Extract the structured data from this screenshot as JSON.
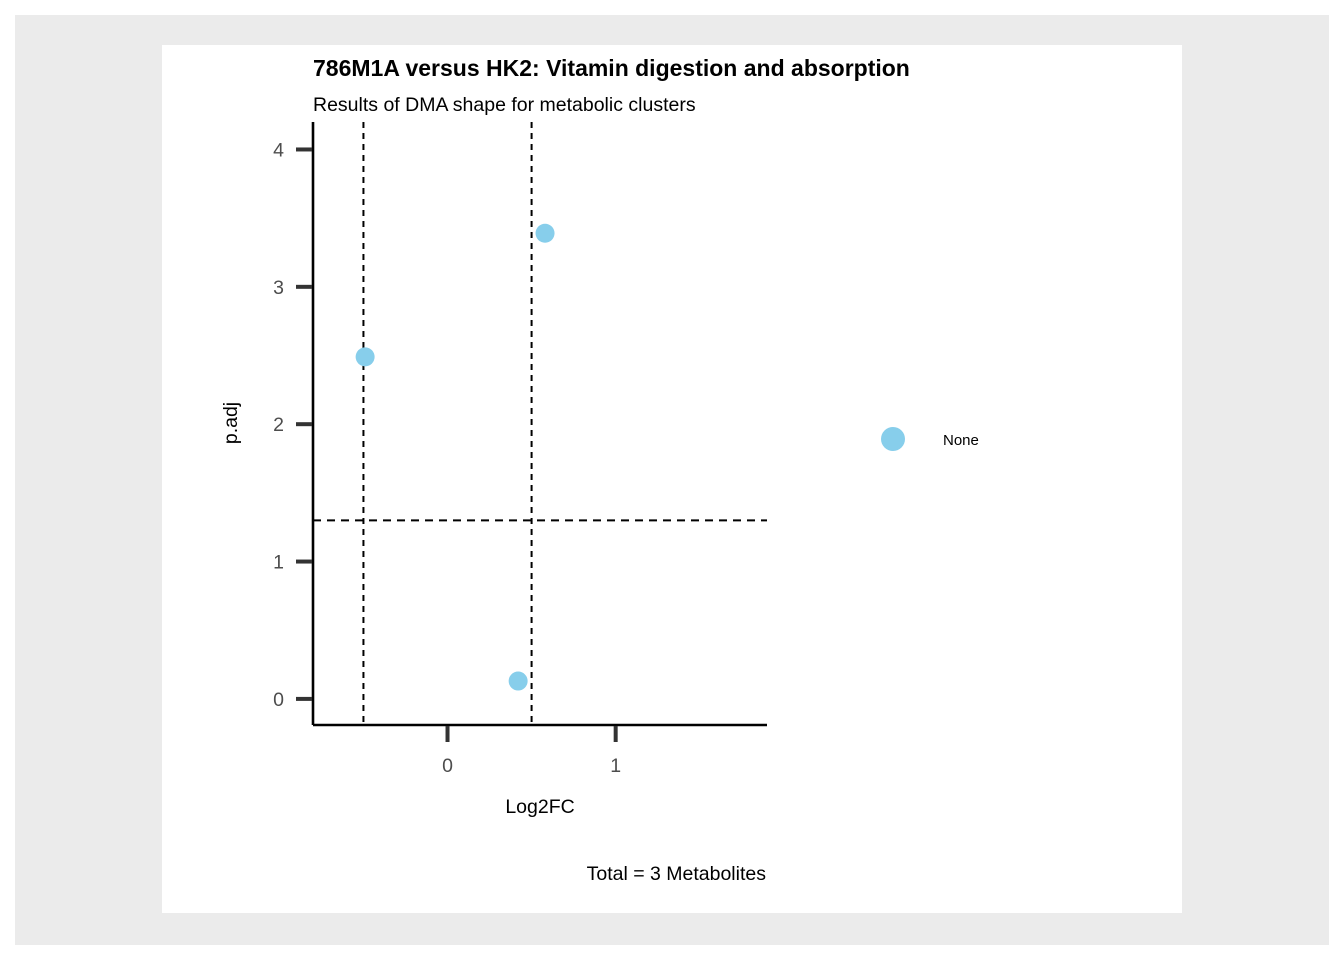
{
  "chart_data": {
    "type": "scatter",
    "title": "786M1A versus HK2: Vitamin digestion and absorption",
    "subtitle": "Results of DMA shape for metabolic clusters",
    "xlabel": "Log2FC",
    "ylabel": "p.adj",
    "caption": "Total = 3 Metabolites",
    "xlim": [
      -0.8,
      1.9
    ],
    "ylim": [
      -0.19,
      4.2
    ],
    "x_ticks": [
      0,
      1
    ],
    "y_ticks": [
      0,
      1,
      2,
      3,
      4
    ],
    "vlines": [
      -0.5,
      0.5
    ],
    "hline": 1.3,
    "series": [
      {
        "name": "None",
        "color": "#87CEEB",
        "points": [
          {
            "x": -0.49,
            "y": 2.49
          },
          {
            "x": 0.58,
            "y": 3.39
          },
          {
            "x": 0.42,
            "y": 0.13
          }
        ]
      }
    ],
    "legend": {
      "position": "right",
      "entries": [
        "None"
      ]
    },
    "grid": false
  }
}
